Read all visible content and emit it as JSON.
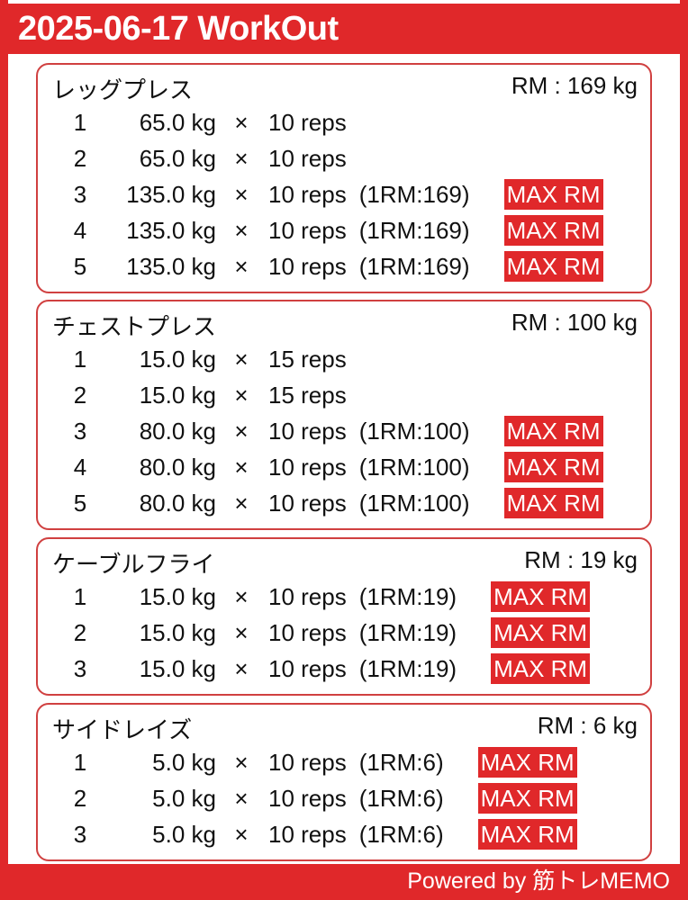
{
  "header": {
    "title": "2025-06-17 WorkOut"
  },
  "footer": {
    "text": "Powered by 筋トレMEMO"
  },
  "colors": {
    "accent": "#e0282a"
  },
  "exercises": [
    {
      "name": "レッグプレス",
      "rm": "RM : 169 kg",
      "sets": [
        {
          "n": "1",
          "weight": "65.0 kg",
          "x": "×",
          "reps": "10 reps",
          "onerm": "",
          "badge": ""
        },
        {
          "n": "2",
          "weight": "65.0 kg",
          "x": "×",
          "reps": "10 reps",
          "onerm": "",
          "badge": ""
        },
        {
          "n": "3",
          "weight": "135.0 kg",
          "x": "×",
          "reps": "10 reps",
          "onerm": "(1RM:169)",
          "badge": "MAX RM"
        },
        {
          "n": "4",
          "weight": "135.0 kg",
          "x": "×",
          "reps": "10 reps",
          "onerm": "(1RM:169)",
          "badge": "MAX RM"
        },
        {
          "n": "5",
          "weight": "135.0 kg",
          "x": "×",
          "reps": "10 reps",
          "onerm": "(1RM:169)",
          "badge": "MAX RM"
        }
      ]
    },
    {
      "name": "チェストプレス",
      "rm": "RM : 100 kg",
      "sets": [
        {
          "n": "1",
          "weight": "15.0 kg",
          "x": "×",
          "reps": "15 reps",
          "onerm": "",
          "badge": ""
        },
        {
          "n": "2",
          "weight": "15.0 kg",
          "x": "×",
          "reps": "15 reps",
          "onerm": "",
          "badge": ""
        },
        {
          "n": "3",
          "weight": "80.0 kg",
          "x": "×",
          "reps": "10 reps",
          "onerm": "(1RM:100)",
          "badge": "MAX RM"
        },
        {
          "n": "4",
          "weight": "80.0 kg",
          "x": "×",
          "reps": "10 reps",
          "onerm": "(1RM:100)",
          "badge": "MAX RM"
        },
        {
          "n": "5",
          "weight": "80.0 kg",
          "x": "×",
          "reps": "10 reps",
          "onerm": "(1RM:100)",
          "badge": "MAX RM"
        }
      ]
    },
    {
      "name": "ケーブルフライ",
      "rm": "RM : 19 kg",
      "sets": [
        {
          "n": "1",
          "weight": "15.0 kg",
          "x": "×",
          "reps": "10 reps",
          "onerm": "(1RM:19)",
          "badge": "MAX RM"
        },
        {
          "n": "2",
          "weight": "15.0 kg",
          "x": "×",
          "reps": "10 reps",
          "onerm": "(1RM:19)",
          "badge": "MAX RM"
        },
        {
          "n": "3",
          "weight": "15.0 kg",
          "x": "×",
          "reps": "10 reps",
          "onerm": "(1RM:19)",
          "badge": "MAX RM"
        }
      ]
    },
    {
      "name": "サイドレイズ",
      "rm": "RM : 6 kg",
      "sets": [
        {
          "n": "1",
          "weight": "5.0 kg",
          "x": "×",
          "reps": "10 reps",
          "onerm": "(1RM:6)",
          "badge": "MAX RM"
        },
        {
          "n": "2",
          "weight": "5.0 kg",
          "x": "×",
          "reps": "10 reps",
          "onerm": "(1RM:6)",
          "badge": "MAX RM"
        },
        {
          "n": "3",
          "weight": "5.0 kg",
          "x": "×",
          "reps": "10 reps",
          "onerm": "(1RM:6)",
          "badge": "MAX RM"
        }
      ]
    }
  ]
}
